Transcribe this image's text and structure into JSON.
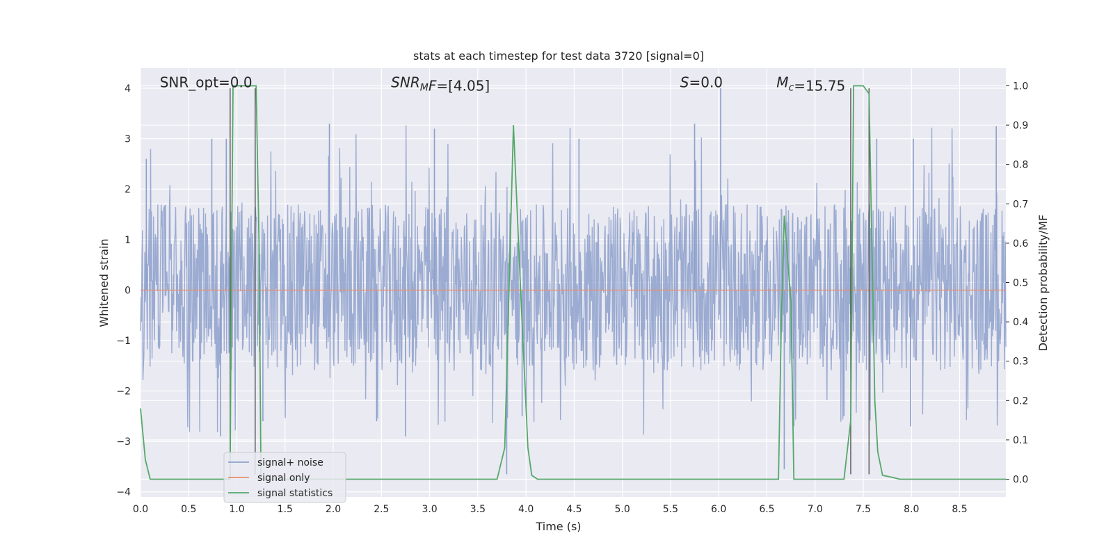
{
  "chart_data": {
    "type": "line",
    "title": "stats at each timestep for test data 3720 [signal=0]",
    "xlabel": "Time (s)",
    "ylabel": "Whitened strain",
    "ylabel_right": "Detection probability/MF",
    "xlim": [
      0.0,
      8.98
    ],
    "ylim": [
      -4.1,
      4.4
    ],
    "ylim_right": [
      -0.045,
      1.045
    ],
    "x_ticks": [
      0.0,
      0.5,
      1.0,
      1.5,
      2.0,
      2.5,
      3.0,
      3.5,
      4.0,
      4.5,
      5.0,
      5.5,
      6.0,
      6.5,
      7.0,
      7.5,
      8.0,
      8.5
    ],
    "x_tick_labels": [
      "0.0",
      "0.5",
      "1.0",
      "1.5",
      "2.0",
      "2.5",
      "3.0",
      "3.5",
      "4.0",
      "4.5",
      "5.0",
      "5.5",
      "6.0",
      "6.5",
      "7.0",
      "7.5",
      "8.0",
      "8.5"
    ],
    "y_ticks": [
      4,
      3,
      2,
      1,
      0,
      -1,
      -2,
      -3,
      -4
    ],
    "y_tick_labels": [
      "4",
      "3",
      "2",
      "1",
      "0",
      "−1",
      "−2",
      "−3",
      "−4"
    ],
    "y_right_ticks": [
      1.0,
      0.9,
      0.8,
      0.7,
      0.6,
      0.5,
      0.4,
      0.3,
      0.2,
      0.1,
      0.0
    ],
    "y_right_tick_labels": [
      "1.0",
      "0.9",
      "0.8",
      "0.7",
      "0.6",
      "0.5",
      "0.4",
      "0.3",
      "0.2",
      "0.1",
      "0.0"
    ],
    "grid": true,
    "legend_position": "lower-left",
    "annotations": [
      {
        "text_parts": [
          {
            "t": "SNR_opt=0.0",
            "style": "normal"
          }
        ],
        "x": 0.2,
        "y": 4.05
      },
      {
        "text_parts": [
          {
            "t": "SNR",
            "style": "italic"
          },
          {
            "t": "M",
            "style": "italic-sub"
          },
          {
            "t": "F",
            "style": "italic"
          },
          {
            "t": "=[4.05]",
            "style": "normal"
          }
        ],
        "x": 2.6,
        "y": 4.05
      },
      {
        "text_parts": [
          {
            "t": "S",
            "style": "italic"
          },
          {
            "t": "=0.0",
            "style": "normal"
          }
        ],
        "x": 5.6,
        "y": 4.05
      },
      {
        "text_parts": [
          {
            "t": "M",
            "style": "italic"
          },
          {
            "t": "c",
            "style": "italic-sub"
          },
          {
            "t": "=15.75",
            "style": "normal"
          }
        ],
        "x": 6.6,
        "y": 4.05
      }
    ],
    "vertical_markers": [
      0.93,
      1.19,
      7.37,
      7.56
    ],
    "vertical_marker_range": [
      -3.65,
      4.0
    ],
    "series": [
      {
        "name": "signal+ noise",
        "axis": "left",
        "color": "#8da0cb",
        "kind": "noise",
        "core_range": [
          -1.6,
          1.7
        ],
        "tail_range": [
          -2.9,
          3.3
        ],
        "spikes": [
          {
            "x": 0.06,
            "y": 2.6
          },
          {
            "x": 0.74,
            "y": 3.0
          },
          {
            "x": 0.83,
            "y": -2.9
          },
          {
            "x": 0.89,
            "y": 3.0
          },
          {
            "x": 1.19,
            "y": 1.45
          },
          {
            "x": 1.27,
            "y": -2.6
          },
          {
            "x": 1.96,
            "y": 3.3
          },
          {
            "x": 2.45,
            "y": -2.6
          },
          {
            "x": 2.75,
            "y": -2.9
          },
          {
            "x": 3.05,
            "y": 3.2
          },
          {
            "x": 3.8,
            "y": -3.65
          },
          {
            "x": 3.96,
            "y": -2.5
          },
          {
            "x": 4.55,
            "y": 3.0
          },
          {
            "x": 5.75,
            "y": 3.3
          },
          {
            "x": 6.02,
            "y": 4.0
          },
          {
            "x": 6.68,
            "y": -3.55
          },
          {
            "x": 6.78,
            "y": -2.7
          },
          {
            "x": 7.3,
            "y": -2.5
          },
          {
            "x": 7.64,
            "y": 3.0
          },
          {
            "x": 7.99,
            "y": -2.7
          },
          {
            "x": 8.02,
            "y": 3.0
          },
          {
            "x": 8.88,
            "y": 3.25
          }
        ]
      },
      {
        "name": "signal only",
        "axis": "left",
        "color": "#e5916e",
        "x": [
          0.0,
          8.98
        ],
        "y": [
          0.0,
          0.0
        ]
      },
      {
        "name": "signal statistics",
        "axis": "right",
        "color": "#55a868",
        "x": [
          0.0,
          0.05,
          0.1,
          0.9,
          0.93,
          0.94,
          0.96,
          1.2,
          1.23,
          1.25,
          3.7,
          3.78,
          3.87,
          3.95,
          4.02,
          4.06,
          4.12,
          4.2,
          6.62,
          6.65,
          6.68,
          6.75,
          6.78,
          6.8,
          7.0,
          7.15,
          7.3,
          7.37,
          7.4,
          7.48,
          7.5,
          7.56,
          7.62,
          7.65,
          7.7,
          7.8,
          7.88,
          8.98
        ],
        "y": [
          0.18,
          0.05,
          0.0,
          0.0,
          0.0,
          0.4,
          1.0,
          1.0,
          0.6,
          0.0,
          0.0,
          0.08,
          0.9,
          0.45,
          0.08,
          0.01,
          0.0,
          0.0,
          0.0,
          0.4,
          0.67,
          0.45,
          0.0,
          0.0,
          0.0,
          0.0,
          0.0,
          0.15,
          1.0,
          1.0,
          1.0,
          0.98,
          0.2,
          0.07,
          0.01,
          0.005,
          0.0,
          0.0
        ]
      }
    ]
  }
}
